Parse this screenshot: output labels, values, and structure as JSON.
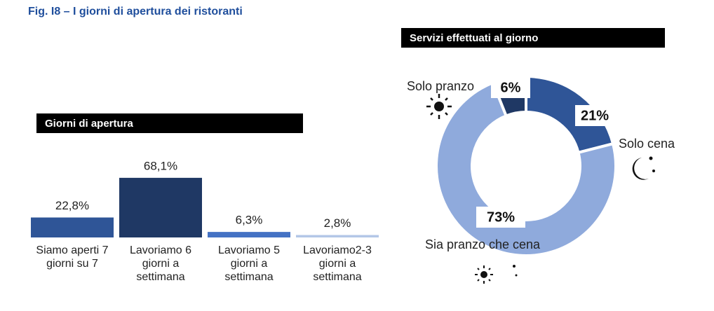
{
  "figure_title": "Fig. I8 – I giorni di apertura dei ristoranti",
  "chart_data": [
    {
      "type": "bar",
      "title": "Giorni di apertura",
      "categories": [
        "Siamo aperti 7 giorni su 7",
        "Lavoriamo 6 giorni a settimana",
        "Lavoriamo 5 giorni a settimana",
        "Lavoriamo2-3 giorni a settimana"
      ],
      "values": [
        22.8,
        68.1,
        6.3,
        2.8
      ],
      "value_labels": [
        "22,8%",
        "68,1%",
        "6,3%",
        "2,8%"
      ],
      "colors": [
        "#2f5597",
        "#1f3864",
        "#4472c4",
        "#b4c7e7"
      ]
    },
    {
      "type": "pie",
      "title": "Servizi effettuati al giorno",
      "categories": [
        "Solo cena",
        "Sia pranzo che cena",
        "Solo pranzo"
      ],
      "values": [
        21,
        73,
        6
      ],
      "value_labels": [
        "21%",
        "73%",
        "6%"
      ],
      "colors": [
        "#2f5597",
        "#8faadc",
        "#1f3864"
      ]
    }
  ]
}
